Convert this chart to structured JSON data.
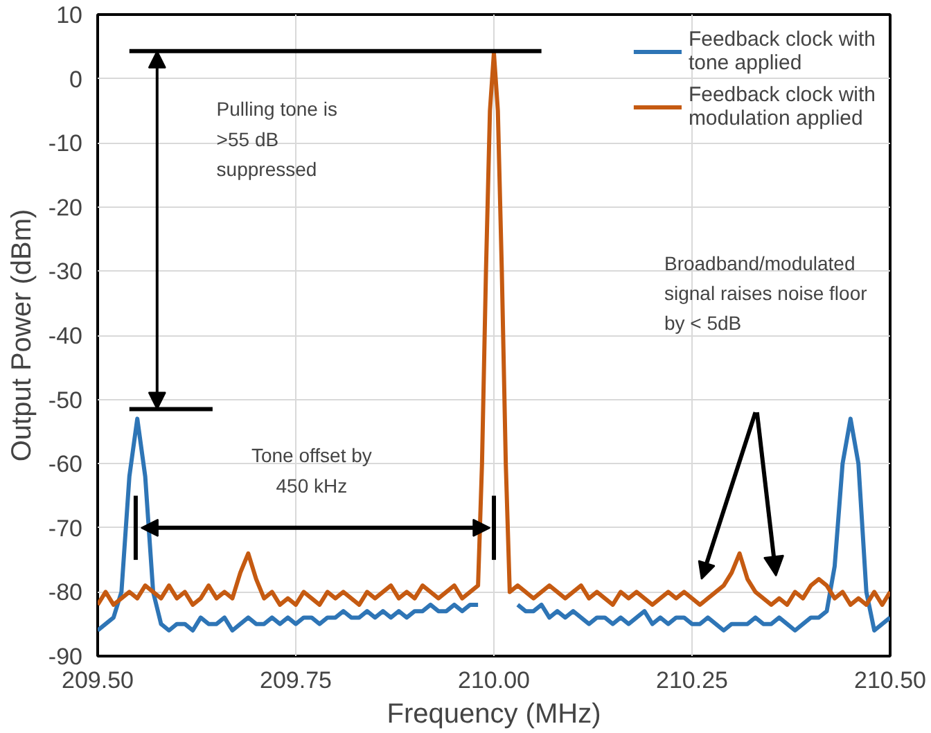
{
  "chart_data": {
    "type": "line",
    "xlabel": "Frequency (MHz)",
    "ylabel": "Output Power (dBm)",
    "xlim": [
      209.5,
      210.5
    ],
    "ylim": [
      -90,
      10
    ],
    "xticks": [
      {
        "value": 209.5,
        "label": "209.50"
      },
      209.75,
      {
        "value": 210.0,
        "label": "210.00"
      },
      210.25,
      {
        "value": 210.5,
        "label": "210.50"
      }
    ],
    "yticks": [
      -90,
      -80,
      -70,
      -60,
      -50,
      -40,
      -30,
      -20,
      -10,
      0,
      10
    ],
    "grid": true,
    "legend": "top right",
    "marker": "none",
    "line_style": "solid",
    "annotations": [
      "Pulling tone is\n>55 dB\nsuppressed",
      "Tone offset by\n450 kHz",
      "Broadband/modulated\nsignal raises noise floor\nby < 5dB"
    ],
    "series": [
      {
        "name": "Feedback clock with tone applied",
        "color": "#2e75b6",
        "x": [
          209.5,
          209.51,
          209.52,
          209.53,
          209.54,
          209.55,
          209.56,
          209.57,
          209.58,
          209.59,
          209.6,
          209.61,
          209.62,
          209.63,
          209.64,
          209.65,
          209.66,
          209.67,
          209.68,
          209.69,
          209.7,
          209.71,
          209.72,
          209.73,
          209.74,
          209.75,
          209.76,
          209.77,
          209.78,
          209.79,
          209.8,
          209.81,
          209.82,
          209.83,
          209.84,
          209.85,
          209.86,
          209.87,
          209.88,
          209.89,
          209.9,
          209.91,
          209.92,
          209.93,
          209.94,
          209.95,
          209.96,
          209.97,
          209.98,
          209.99,
          210.0,
          210.01,
          210.02,
          210.03,
          210.04,
          210.05,
          210.06,
          210.07,
          210.08,
          210.09,
          210.1,
          210.11,
          210.12,
          210.13,
          210.14,
          210.15,
          210.16,
          210.17,
          210.18,
          210.19,
          210.2,
          210.21,
          210.22,
          210.23,
          210.24,
          210.25,
          210.26,
          210.27,
          210.28,
          210.29,
          210.3,
          210.31,
          210.32,
          210.33,
          210.34,
          210.35,
          210.36,
          210.37,
          210.38,
          210.39,
          210.4,
          210.41,
          210.42,
          210.43,
          210.44,
          210.45,
          210.46,
          210.47,
          210.48,
          210.49,
          210.5
        ],
        "values": [
          -86,
          -85,
          -84,
          -80,
          -62,
          -53,
          -62,
          -80,
          -85,
          -86,
          -85,
          -85,
          -86,
          -84,
          -85,
          -85,
          -84,
          -86,
          -85,
          -84,
          -85,
          -85,
          -84,
          -85,
          -84,
          -85,
          -84,
          -84,
          -85,
          -84,
          -84,
          -83,
          -84,
          -84,
          -83,
          -84,
          -83,
          -84,
          -83,
          -84,
          -83,
          -83,
          -82,
          -83,
          -83,
          -82,
          -83,
          -82,
          -82,
          null,
          null,
          null,
          null,
          -82,
          -83,
          -83,
          -82,
          -84,
          -83,
          -84,
          -83,
          -84,
          -85,
          -84,
          -84,
          -85,
          -84,
          -85,
          -84,
          -83,
          -85,
          -84,
          -85,
          -84,
          -84,
          -85,
          -85,
          -84,
          -85,
          -86,
          -85,
          -85,
          -85,
          -84,
          -85,
          -85,
          -84,
          -85,
          -86,
          -85,
          -84,
          -84,
          -83,
          -76,
          -60,
          -53,
          -60,
          -80,
          -86,
          -85,
          -84
        ]
      },
      {
        "name": "Feedback clock with modulation applied",
        "color": "#c55a11",
        "x": [
          209.5,
          209.51,
          209.52,
          209.53,
          209.54,
          209.55,
          209.56,
          209.57,
          209.58,
          209.59,
          209.6,
          209.61,
          209.62,
          209.63,
          209.64,
          209.65,
          209.66,
          209.67,
          209.68,
          209.69,
          209.7,
          209.71,
          209.72,
          209.73,
          209.74,
          209.75,
          209.76,
          209.77,
          209.78,
          209.79,
          209.8,
          209.81,
          209.82,
          209.83,
          209.84,
          209.85,
          209.86,
          209.87,
          209.88,
          209.89,
          209.9,
          209.91,
          209.92,
          209.93,
          209.94,
          209.95,
          209.96,
          209.97,
          209.98,
          209.985,
          209.99,
          209.995,
          210.0,
          210.005,
          210.01,
          210.015,
          210.02,
          210.03,
          210.04,
          210.05,
          210.06,
          210.07,
          210.08,
          210.09,
          210.1,
          210.11,
          210.12,
          210.13,
          210.14,
          210.15,
          210.16,
          210.17,
          210.18,
          210.19,
          210.2,
          210.21,
          210.22,
          210.23,
          210.24,
          210.25,
          210.26,
          210.27,
          210.28,
          210.29,
          210.3,
          210.31,
          210.32,
          210.33,
          210.34,
          210.35,
          210.36,
          210.37,
          210.38,
          210.39,
          210.4,
          210.41,
          210.42,
          210.43,
          210.44,
          210.45,
          210.46,
          210.47,
          210.48,
          210.49,
          210.5
        ],
        "values": [
          -82,
          -80,
          -82,
          -81,
          -80,
          -81,
          -79,
          -80,
          -81,
          -79,
          -81,
          -80,
          -82,
          -81,
          -79,
          -81,
          -80,
          -81,
          -77,
          -74,
          -78,
          -81,
          -80,
          -82,
          -81,
          -82,
          -80,
          -81,
          -82,
          -80,
          -81,
          -80,
          -81,
          -82,
          -80,
          -81,
          -80,
          -79,
          -81,
          -80,
          -81,
          -79,
          -80,
          -81,
          -80,
          -79,
          -81,
          -80,
          -79,
          -60,
          -30,
          -5,
          4,
          -5,
          -30,
          -60,
          -80,
          -79,
          -80,
          -81,
          -80,
          -79,
          -80,
          -81,
          -80,
          -79,
          -81,
          -80,
          -81,
          -82,
          -80,
          -81,
          -80,
          -81,
          -82,
          -81,
          -80,
          -81,
          -80,
          -81,
          -82,
          -81,
          -80,
          -79,
          -77,
          -74,
          -78,
          -80,
          -81,
          -82,
          -81,
          -82,
          -80,
          -81,
          -79,
          -78,
          -79,
          -81,
          -80,
          -82,
          -81,
          -82,
          -80,
          -82,
          -80
        ]
      },
      {
        "color": "#000000",
        "x": [
          209.54,
          210.06
        ],
        "values": [
          4.3,
          4.3
        ]
      },
      {
        "color": "#000000",
        "x": [
          209.54,
          209.645
        ],
        "values": [
          -51.5,
          -51.5
        ]
      },
      {
        "color": "#000000",
        "x": [
          209.548,
          209.548
        ],
        "values": [
          -65,
          -75
        ]
      },
      {
        "color": "#000000",
        "x": [
          210.0,
          210.0
        ],
        "values": [
          -65,
          -75
        ]
      }
    ]
  }
}
